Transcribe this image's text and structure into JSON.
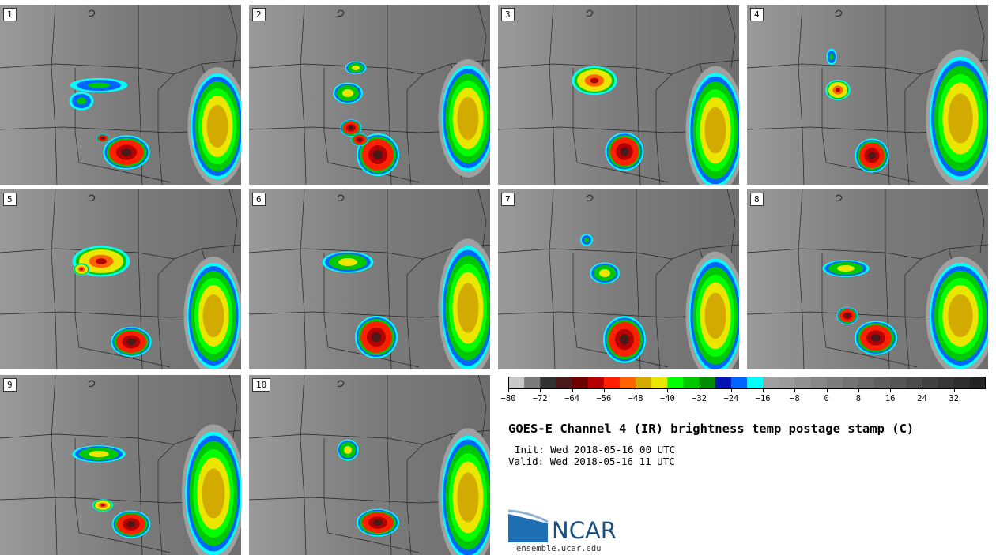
{
  "title": "GOES-E Channel 4 (IR) brightness temp postage stamp (C)",
  "init_text": "Init: Wed 2018-05-16 00 UTC",
  "valid_text": "Valid: Wed 2018-05-16 11 UTC",
  "logo_text": "NCAR",
  "site_text": "ensemble.ucar.edu",
  "panels": [
    {
      "label": "1"
    },
    {
      "label": "2"
    },
    {
      "label": "3"
    },
    {
      "label": "4"
    },
    {
      "label": "5"
    },
    {
      "label": "6"
    },
    {
      "label": "7"
    },
    {
      "label": "8"
    },
    {
      "label": "9"
    },
    {
      "label": "10"
    }
  ],
  "colorbar": {
    "min": -80,
    "max": 40,
    "step": 4,
    "tick_labels": [
      "−80",
      "−72",
      "−64",
      "−56",
      "−48",
      "−40",
      "−32",
      "−24",
      "−16",
      "−8",
      "0",
      "8",
      "16",
      "24",
      "32"
    ],
    "colors": [
      "#c8c8c8",
      "#7a7a7a",
      "#323232",
      "#4a1a1a",
      "#6e0000",
      "#b40000",
      "#ff2000",
      "#ff6400",
      "#d2aa00",
      "#ebe600",
      "#00ff00",
      "#00c800",
      "#008c00",
      "#0014b4",
      "#0064ff",
      "#00ffff",
      "#a0a0a0",
      "#9b9b9b",
      "#919191",
      "#878787",
      "#7d7d7d",
      "#737373",
      "#696969",
      "#5f5f5f",
      "#555555",
      "#4b4b4b",
      "#414141",
      "#373737",
      "#2d2d2d",
      "#232323"
    ]
  }
}
